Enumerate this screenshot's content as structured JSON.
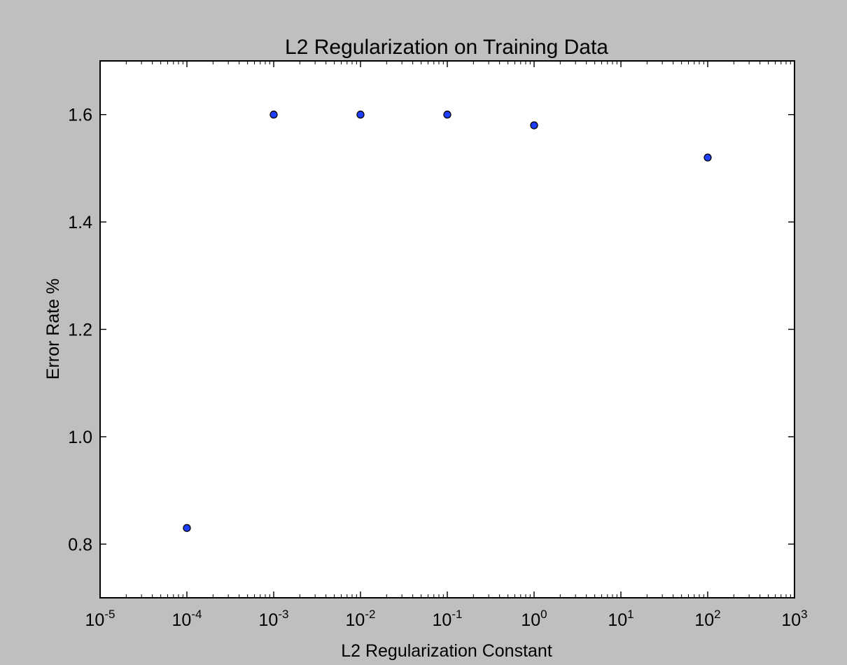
{
  "chart_data": {
    "type": "scatter",
    "title": "L2 Regularization on Training Data",
    "xlabel": "L2 Regularization Constant",
    "ylabel": "Error Rate %",
    "xscale": "log",
    "xlim": [
      1e-05,
      1000
    ],
    "ylim": [
      0.7,
      1.7
    ],
    "x_ticks": [
      {
        "base": "10",
        "exp": "-5"
      },
      {
        "base": "10",
        "exp": "-4"
      },
      {
        "base": "10",
        "exp": "-3"
      },
      {
        "base": "10",
        "exp": "-2"
      },
      {
        "base": "10",
        "exp": "-1"
      },
      {
        "base": "10",
        "exp": "0"
      },
      {
        "base": "10",
        "exp": "1"
      },
      {
        "base": "10",
        "exp": "2"
      },
      {
        "base": "10",
        "exp": "3"
      }
    ],
    "y_ticks": [
      "0.8",
      "1.0",
      "1.2",
      "1.4",
      "1.6"
    ],
    "grid": false,
    "marker_color": "#1f3fff",
    "points": [
      {
        "x": 0.0001,
        "y": 0.83
      },
      {
        "x": 0.001,
        "y": 1.6
      },
      {
        "x": 0.01,
        "y": 1.6
      },
      {
        "x": 0.1,
        "y": 1.6
      },
      {
        "x": 1,
        "y": 1.58
      },
      {
        "x": 100,
        "y": 1.52
      }
    ]
  }
}
